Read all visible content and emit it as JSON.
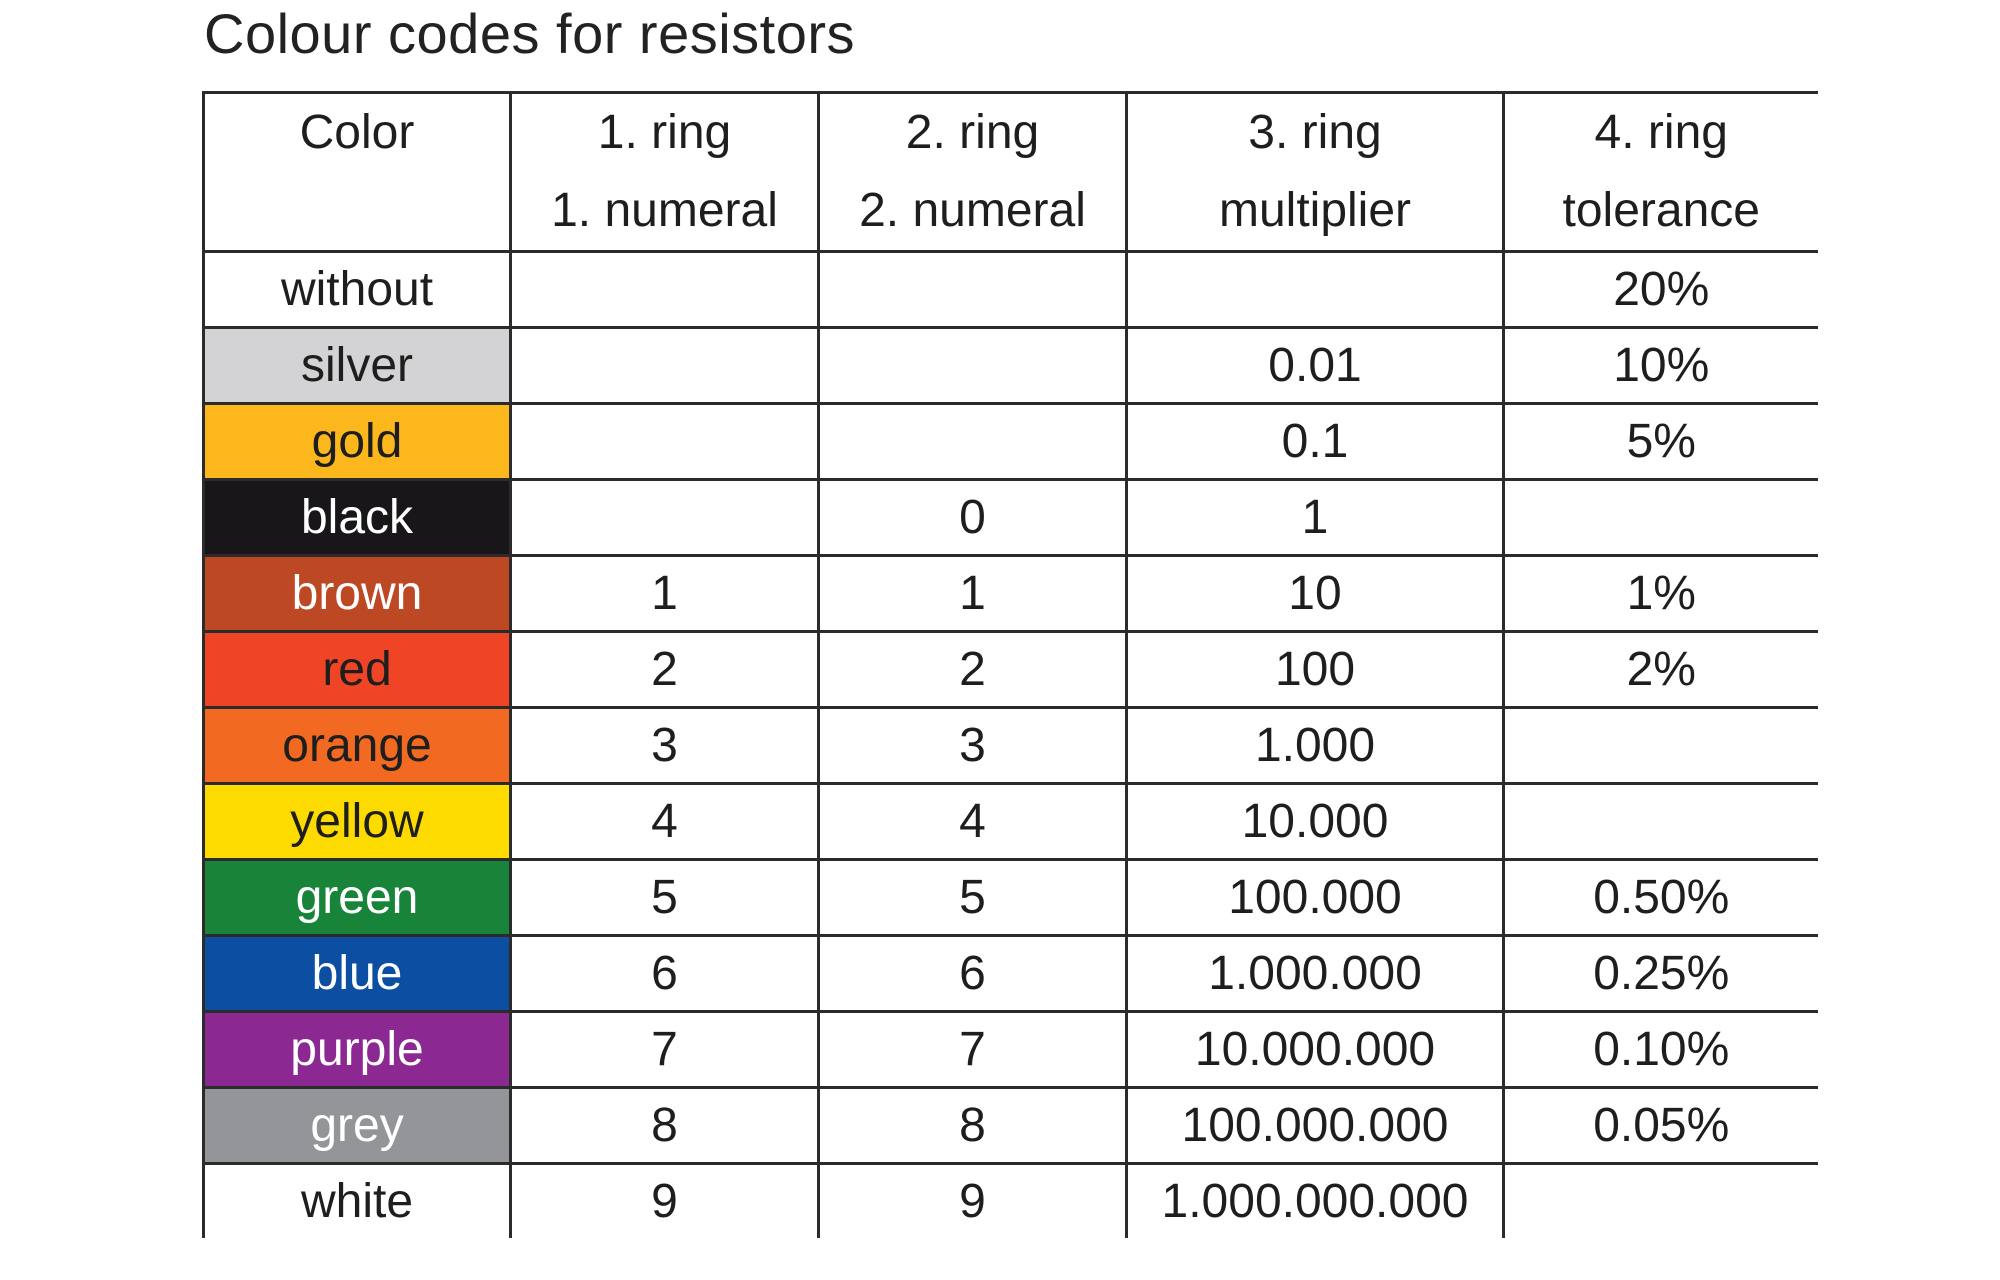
{
  "title": "Colour codes for resistors",
  "headers": [
    {
      "line1": "Color",
      "line2": ""
    },
    {
      "line1": "1. ring",
      "line2": "1. numeral"
    },
    {
      "line1": "2. ring",
      "line2": "2. numeral"
    },
    {
      "line1": "3. ring",
      "line2": "multiplier"
    },
    {
      "line1": "4. ring",
      "line2": "tolerance"
    }
  ],
  "rows": [
    {
      "color": "without",
      "bg": "#ffffff",
      "fg": "#1e1e1e",
      "ring1": "",
      "ring2": "",
      "multiplier": "",
      "tolerance": "20%"
    },
    {
      "color": "silver",
      "bg": "#d3d3d5",
      "fg": "#1e1e1e",
      "ring1": "",
      "ring2": "",
      "multiplier": "0.01",
      "tolerance": "10%"
    },
    {
      "color": "gold",
      "bg": "#fcb71d",
      "fg": "#1e1e1e",
      "ring1": "",
      "ring2": "",
      "multiplier": "0.1",
      "tolerance": "5%"
    },
    {
      "color": "black",
      "bg": "#181619",
      "fg": "#ffffff",
      "ring1": "",
      "ring2": "0",
      "multiplier": "1",
      "tolerance": ""
    },
    {
      "color": "brown",
      "bg": "#bd4824",
      "fg": "#ffffff",
      "ring1": "1",
      "ring2": "1",
      "multiplier": "10",
      "tolerance": "1%"
    },
    {
      "color": "red",
      "bg": "#ef4526",
      "fg": "#1e1e1e",
      "ring1": "2",
      "ring2": "2",
      "multiplier": "100",
      "tolerance": "2%"
    },
    {
      "color": "orange",
      "bg": "#f26a21",
      "fg": "#1e1e1e",
      "ring1": "3",
      "ring2": "3",
      "multiplier": "1.000",
      "tolerance": ""
    },
    {
      "color": "yellow",
      "bg": "#fedb00",
      "fg": "#1e1e1e",
      "ring1": "4",
      "ring2": "4",
      "multiplier": "10.000",
      "tolerance": ""
    },
    {
      "color": "green",
      "bg": "#17843a",
      "fg": "#ffffff",
      "ring1": "5",
      "ring2": "5",
      "multiplier": "100.000",
      "tolerance": "0.50%"
    },
    {
      "color": "blue",
      "bg": "#0b4ea2",
      "fg": "#ffffff",
      "ring1": "6",
      "ring2": "6",
      "multiplier": "1.000.000",
      "tolerance": "0.25%"
    },
    {
      "color": "purple",
      "bg": "#8b2891",
      "fg": "#ffffff",
      "ring1": "7",
      "ring2": "7",
      "multiplier": "10.000.000",
      "tolerance": "0.10%"
    },
    {
      "color": "grey",
      "bg": "#939598",
      "fg": "#ffffff",
      "ring1": "8",
      "ring2": "8",
      "multiplier": "100.000.000",
      "tolerance": "0.05%"
    },
    {
      "color": "white",
      "bg": "#ffffff",
      "fg": "#1e1e1e",
      "ring1": "9",
      "ring2": "9",
      "multiplier": "1.000.000.000",
      "tolerance": ""
    }
  ]
}
